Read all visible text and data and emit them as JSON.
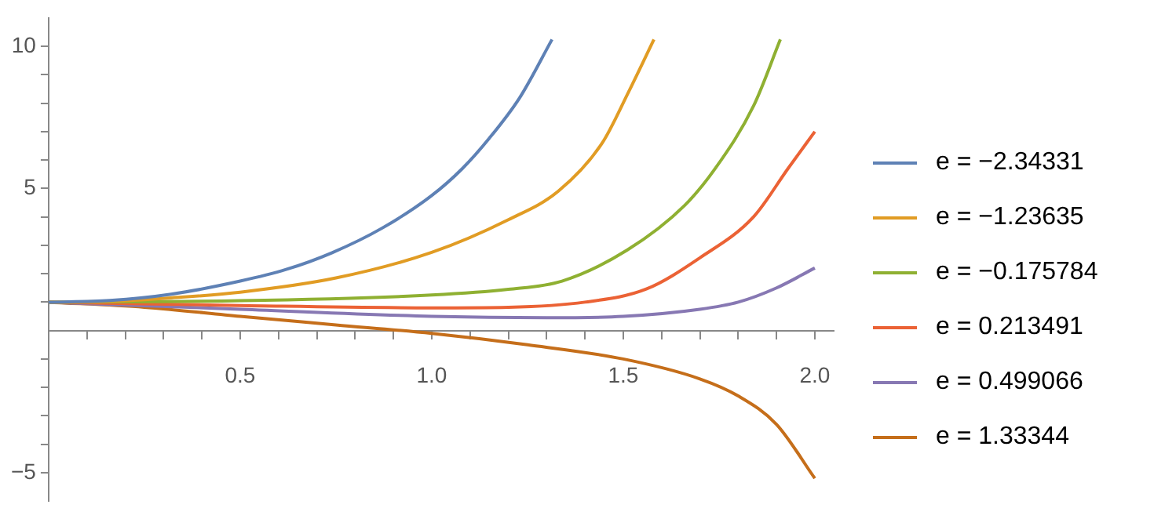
{
  "chart_data": {
    "type": "line",
    "legend": "right",
    "grid": false,
    "marker": "none",
    "line_style": "solid",
    "xlim": [
      0,
      2.05
    ],
    "ylim": [
      -6,
      11
    ],
    "xticks": [
      {
        "value": 0.1,
        "label": null
      },
      {
        "value": 0.2,
        "label": null
      },
      {
        "value": 0.3,
        "label": null
      },
      {
        "value": 0.4,
        "label": null
      },
      {
        "value": 0.5,
        "label": "0.5"
      },
      {
        "value": 0.6,
        "label": null
      },
      {
        "value": 0.7,
        "label": null
      },
      {
        "value": 0.8,
        "label": null
      },
      {
        "value": 0.9,
        "label": null
      },
      {
        "value": 1,
        "label": "1.0"
      },
      {
        "value": 1.1,
        "label": null
      },
      {
        "value": 1.2,
        "label": null
      },
      {
        "value": 1.3,
        "label": null
      },
      {
        "value": 1.4,
        "label": null
      },
      {
        "value": 1.5,
        "label": "1.5"
      },
      {
        "value": 1.6,
        "label": null
      },
      {
        "value": 1.7,
        "label": null
      },
      {
        "value": 1.8,
        "label": null
      },
      {
        "value": 1.9,
        "label": null
      },
      {
        "value": 2,
        "label": "2.0"
      }
    ],
    "yticks": [
      -5,
      {
        "value": -4,
        "label": null
      },
      {
        "value": -3,
        "label": null
      },
      {
        "value": -2,
        "label": null
      },
      {
        "value": -1,
        "label": null
      },
      {
        "value": 1,
        "label": null
      },
      {
        "value": 2,
        "label": null
      },
      {
        "value": 3,
        "label": null
      },
      {
        "value": 4,
        "label": null
      },
      5,
      {
        "value": 6,
        "label": null
      },
      {
        "value": 7,
        "label": null
      },
      {
        "value": 8,
        "label": null
      },
      {
        "value": 9,
        "label": null
      },
      10
    ],
    "series": [
      {
        "name": "e = −2.34331",
        "color": "#5e81b5",
        "x": [
          0,
          0.16,
          0.32,
          0.5,
          0.62,
          0.74,
          0.87,
          1.0,
          1.08,
          1.15,
          1.23,
          1.314
        ],
        "values": [
          1,
          1.06,
          1.28,
          1.74,
          2.15,
          2.74,
          3.6,
          4.75,
          5.7,
          6.76,
          8.2,
          10.24
        ]
      },
      {
        "name": "e = −1.23635",
        "color": "#e19c24",
        "x": [
          0,
          0.16,
          0.32,
          0.5,
          0.75,
          1.0,
          1.2,
          1.33,
          1.445,
          1.514,
          1.58
        ],
        "values": [
          1,
          1.03,
          1.15,
          1.35,
          1.85,
          2.75,
          3.9,
          4.9,
          6.6,
          8.4,
          10.24
        ]
      },
      {
        "name": "e = −0.175784",
        "color": "#8fb032",
        "x": [
          0,
          0.5,
          1.0,
          1.2,
          1.34,
          1.51,
          1.66,
          1.74,
          1.84,
          1.91
        ],
        "values": [
          1,
          1.05,
          1.25,
          1.45,
          1.74,
          2.83,
          4.4,
          5.7,
          7.9,
          10.24
        ]
      },
      {
        "name": "e = 0.213491",
        "color": "#eb6235",
        "x": [
          0,
          0.5,
          1.0,
          1.2,
          1.4,
          1.56,
          1.7,
          1.84,
          1.93,
          2.0
        ],
        "values": [
          1,
          0.88,
          0.8,
          0.82,
          1.0,
          1.46,
          2.56,
          4.0,
          5.7,
          7.0
        ]
      },
      {
        "name": "e = 0.499066",
        "color": "#8778b3",
        "x": [
          0,
          0.5,
          1.0,
          1.3,
          1.5,
          1.7,
          1.8,
          1.9,
          2.0
        ],
        "values": [
          1,
          0.75,
          0.5,
          0.45,
          0.5,
          0.75,
          1.0,
          1.5,
          2.2
        ]
      },
      {
        "name": "e = 1.33344",
        "color": "#c56e1a",
        "x": [
          0,
          0.25,
          0.5,
          0.75,
          1.0,
          1.25,
          1.5,
          1.7,
          1.8,
          1.9,
          2.0
        ],
        "values": [
          1,
          0.82,
          0.5,
          0.2,
          -0.1,
          -0.5,
          -1.0,
          -1.7,
          -2.3,
          -3.3,
          -5.2
        ]
      }
    ]
  }
}
